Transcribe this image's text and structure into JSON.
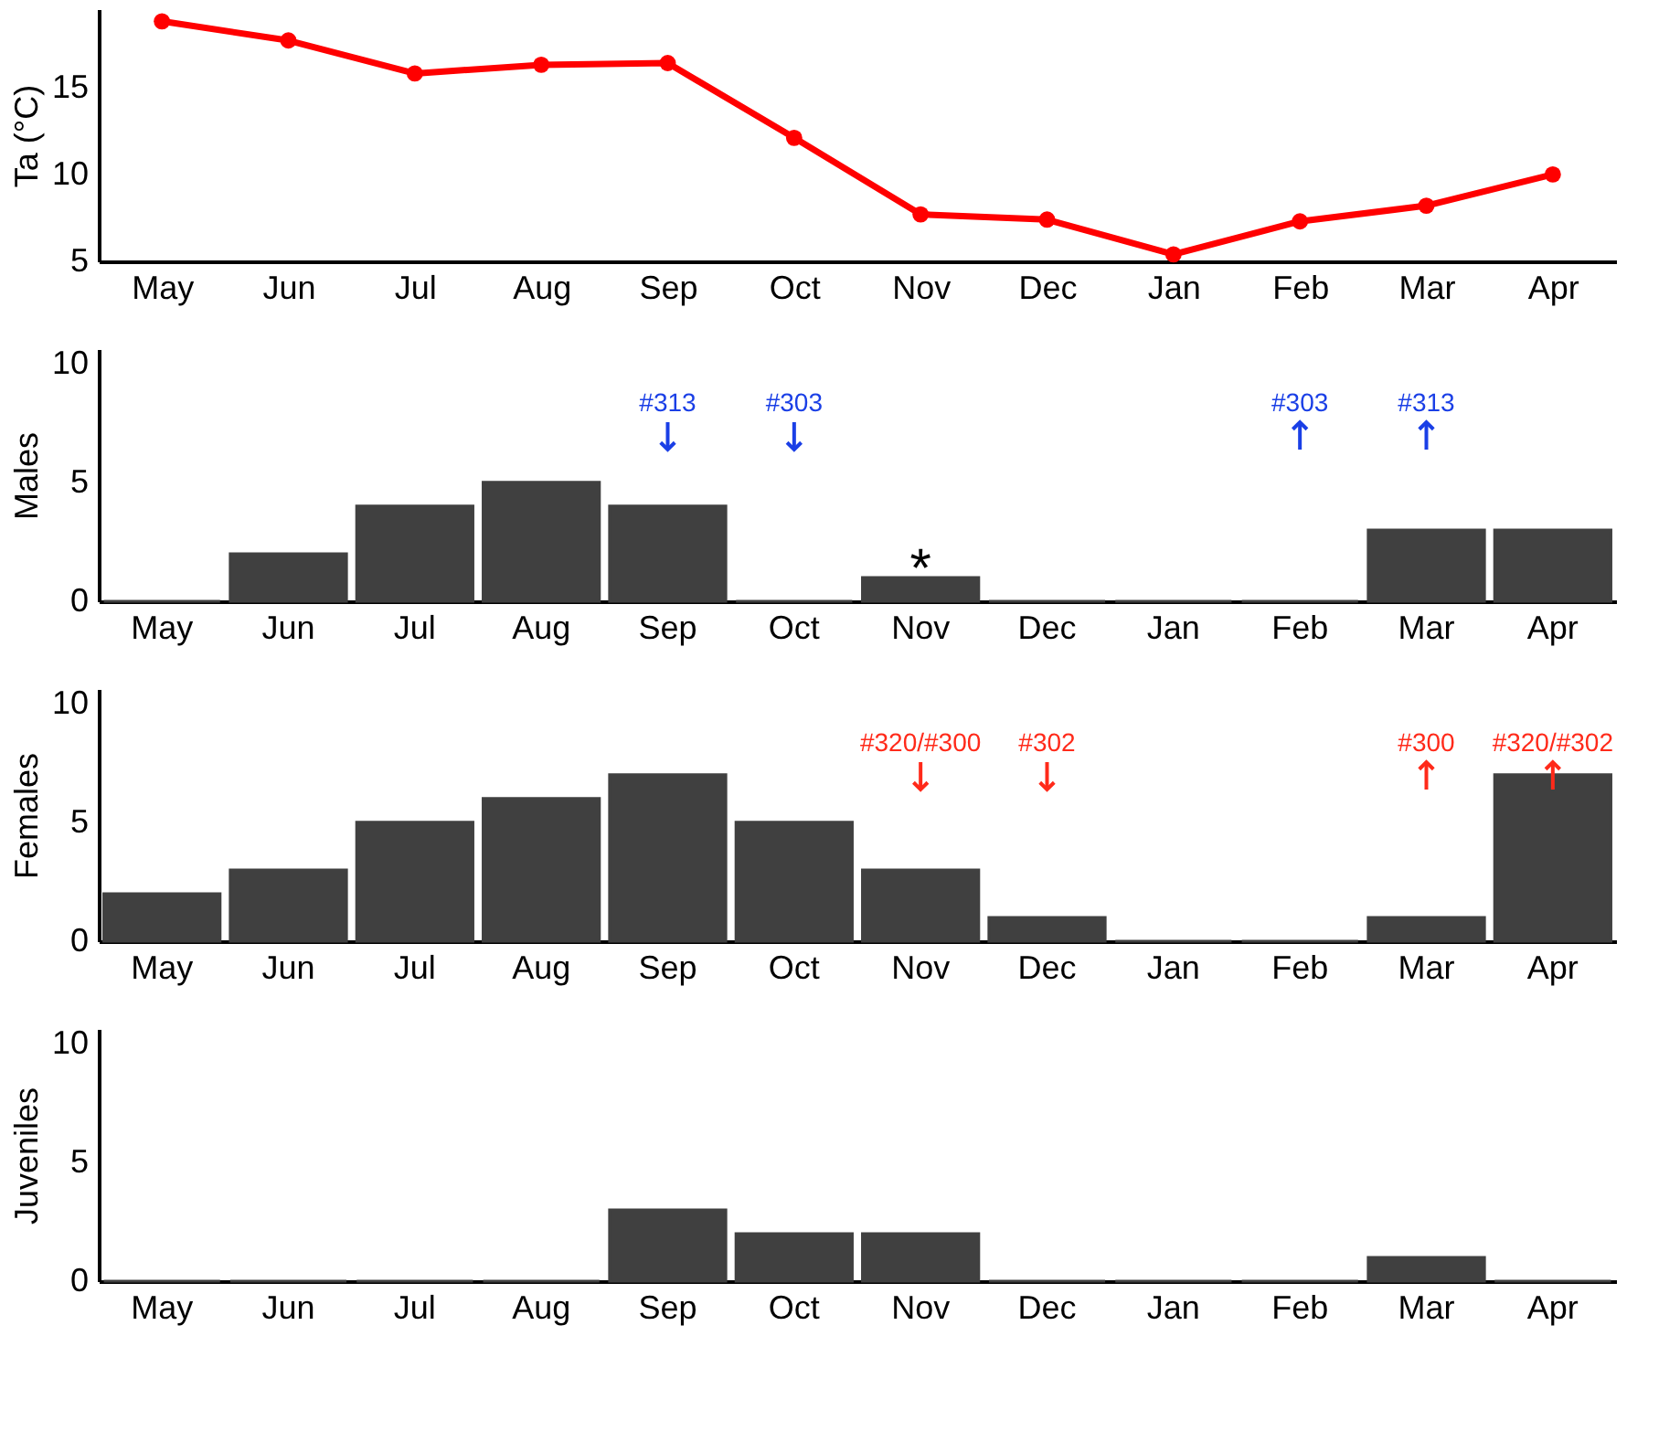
{
  "chart_data": [
    {
      "type": "line",
      "ylabel": "Ta (°C)",
      "categories": [
        "May",
        "Jun",
        "Jul",
        "Aug",
        "Sep",
        "Oct",
        "Nov",
        "Dec",
        "Jan",
        "Feb",
        "Mar",
        "Apr"
      ],
      "series": [
        {
          "color": "#ff0000",
          "values": [
            18.8,
            17.7,
            15.8,
            16.3,
            16.4,
            12.1,
            7.7,
            7.4,
            5.4,
            7.3,
            8.2,
            10.0
          ]
        }
      ],
      "ylim": [
        5,
        19.5
      ],
      "yticks": [
        5,
        10,
        15
      ],
      "marker": "circle",
      "grid": false
    },
    {
      "type": "bar",
      "ylabel": "Males",
      "categories": [
        "May",
        "Jun",
        "Jul",
        "Aug",
        "Sep",
        "Oct",
        "Nov",
        "Dec",
        "Jan",
        "Feb",
        "Mar",
        "Apr"
      ],
      "series": [
        {
          "color": "#404040",
          "values": [
            0,
            2,
            4,
            5,
            4,
            0,
            1,
            0,
            0,
            0,
            3,
            3
          ]
        }
      ],
      "ylim": [
        0,
        10.6
      ],
      "yticks": [
        0,
        5,
        10
      ],
      "grid": false,
      "annotations": [
        {
          "text": "#313",
          "x": "Sep"
        },
        {
          "text": "#303",
          "x": "Oct"
        },
        {
          "text": "#303",
          "x": "Feb"
        },
        {
          "text": "#313",
          "x": "Mar"
        },
        {
          "text": "*",
          "x": "Nov",
          "y": 1
        }
      ]
    },
    {
      "type": "bar",
      "ylabel": "Females",
      "categories": [
        "May",
        "Jun",
        "Jul",
        "Aug",
        "Sep",
        "Oct",
        "Nov",
        "Dec",
        "Jan",
        "Feb",
        "Mar",
        "Apr"
      ],
      "series": [
        {
          "color": "#404040",
          "values": [
            2,
            3,
            5,
            6,
            7,
            5,
            3,
            1,
            0,
            0,
            1,
            7
          ]
        }
      ],
      "ylim": [
        0,
        10.6
      ],
      "yticks": [
        0,
        5,
        10
      ],
      "grid": false,
      "annotations": [
        {
          "text": "#320/#300",
          "x": "Nov"
        },
        {
          "text": "#302",
          "x": "Dec"
        },
        {
          "text": "#300",
          "x": "Mar"
        },
        {
          "text": "#320/#302",
          "x": "Apr"
        }
      ]
    },
    {
      "type": "bar",
      "ylabel": "Juveniles",
      "categories": [
        "May",
        "Jun",
        "Jul",
        "Aug",
        "Sep",
        "Oct",
        "Nov",
        "Dec",
        "Jan",
        "Feb",
        "Mar",
        "Apr"
      ],
      "series": [
        {
          "color": "#404040",
          "values": [
            0,
            0,
            0,
            0,
            3,
            2,
            2,
            0,
            0,
            0,
            1,
            0
          ]
        }
      ],
      "ylim": [
        0,
        10.6
      ],
      "yticks": [
        0,
        5,
        10
      ],
      "grid": false
    }
  ]
}
